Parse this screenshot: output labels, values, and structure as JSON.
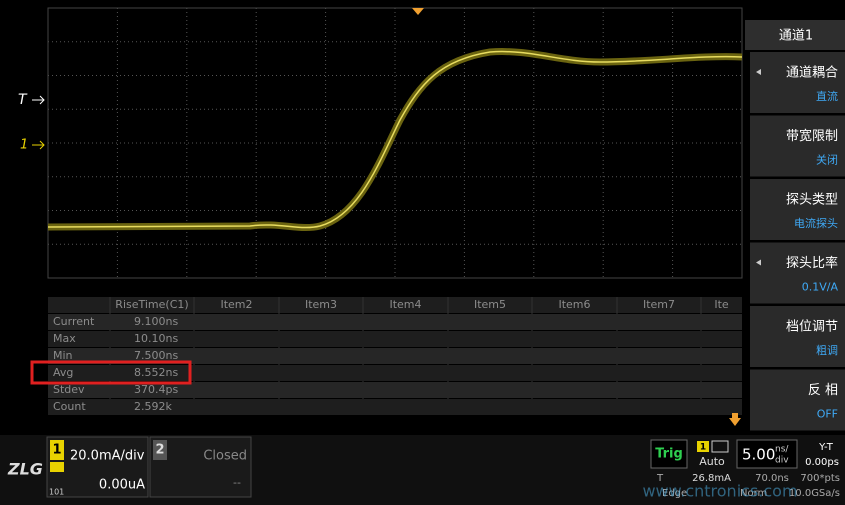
{
  "screen": {
    "markers": {
      "trigger": "T",
      "channel": "1"
    },
    "measurements": {
      "columns": [
        "RiseTime(C1)",
        "Item2",
        "Item3",
        "Item4",
        "Item5",
        "Item6",
        "Item7",
        "Ite"
      ],
      "rows": [
        [
          "Current",
          "9.100ns"
        ],
        [
          "Max",
          "10.10ns"
        ],
        [
          "Min",
          "7.500ns"
        ],
        [
          "Avg",
          "8.552ns"
        ],
        [
          "Stdev",
          "370.4ps"
        ],
        [
          "Count",
          "2.592k"
        ]
      ]
    },
    "menu": {
      "title": "通道1",
      "items": [
        {
          "label": "通道耦合",
          "value": "直流",
          "arrow": true
        },
        {
          "label": "带宽限制",
          "value": "关闭",
          "arrow": false
        },
        {
          "label": "探头类型",
          "value": "电流探头",
          "arrow": false
        },
        {
          "label": "探头比率",
          "value": "0.1V/A",
          "arrow": true
        },
        {
          "label": "档位调节",
          "value": "粗调",
          "arrow": false
        },
        {
          "label": "反 相",
          "value": "OFF",
          "arrow": false
        }
      ]
    },
    "logo": "ZLG",
    "channels": [
      {
        "number": "1",
        "scale": "20.0mA/div",
        "offset": "0.00uA",
        "extra": "101"
      },
      {
        "number": "2",
        "scale": "Closed",
        "offset": "--"
      }
    ],
    "trigger": {
      "label": "Trig",
      "source": "1",
      "mode": "Auto",
      "level_prefix": "T",
      "level": "26.8mA",
      "type": "Edge",
      "sweep": "Norm"
    },
    "timebase": {
      "scale": "5.00",
      "unit_top": "ns/",
      "unit_bottom": "div",
      "delay": "70.0ns",
      "mode": "Y-T",
      "offset": "0.00ps",
      "points": "700*pts",
      "rate": "10.0GSa/s"
    },
    "watermark": "www.cntronics.com"
  }
}
